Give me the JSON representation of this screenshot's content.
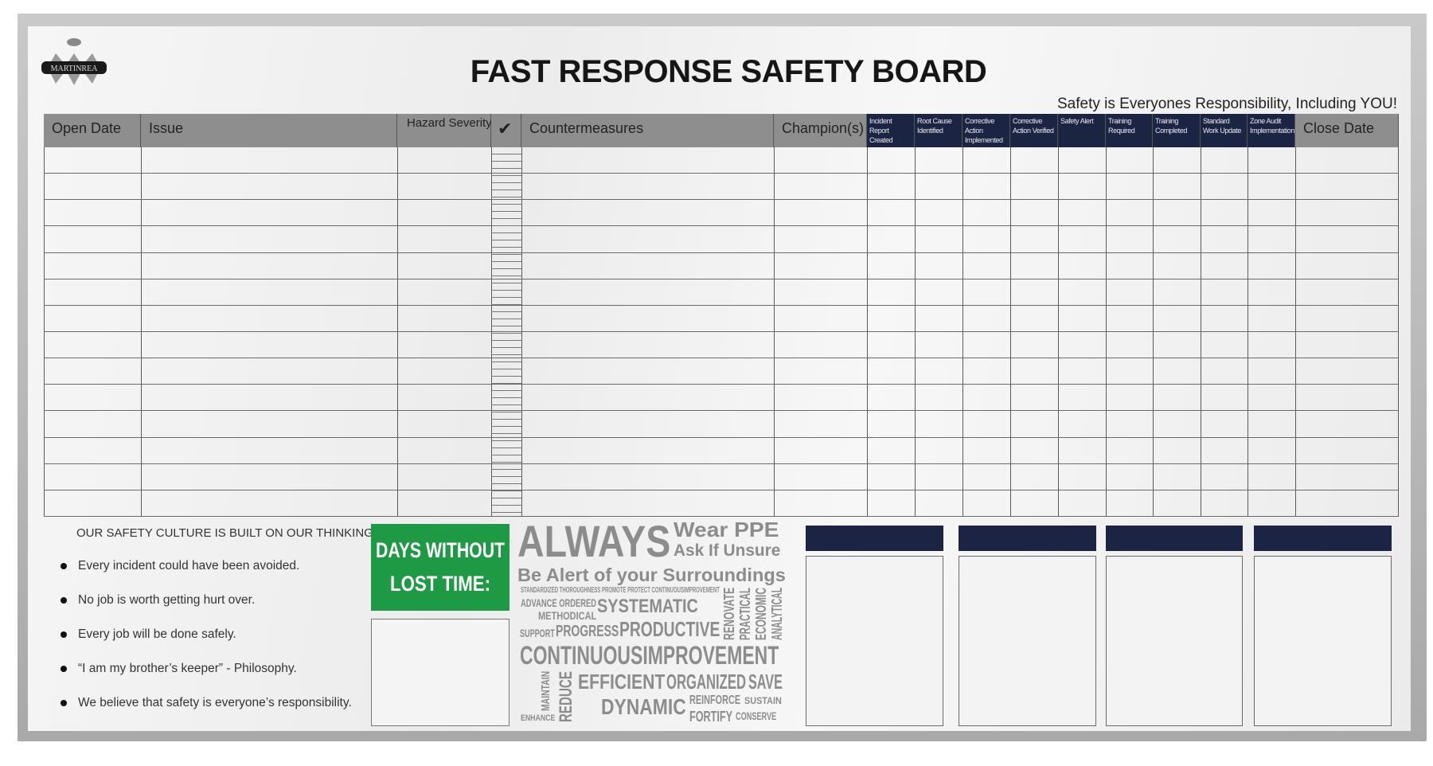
{
  "board": {
    "logo_text": "MARTINREA",
    "title": "FAST RESPONSE SAFETY BOARD",
    "subtitle": "Safety is Everyones Responsibility, Including YOU!"
  },
  "table": {
    "columns": [
      "Open Date",
      "Issue",
      "Hazard Severity",
      "✔",
      "Countermeasures",
      "Champion(s)",
      "Incident Report Created",
      "Root Cause Identified",
      "Corrective Action Implemented",
      "Corrective Action Verified",
      "Safety Alert",
      "Training Required",
      "Training Completed",
      "Standard Work Update",
      "Zone Audit Implementation",
      "Close Date"
    ],
    "header_colors": {
      "grey": "#8e8e8e",
      "navy": "#1c2444"
    }
  },
  "culture": {
    "heading": "OUR SAFETY CULTURE IS BUILT ON OUR THINKING:",
    "bullets": [
      "Every incident could have been avoided.",
      "No job is worth getting hurt over.",
      "Every job will be done safely.",
      "“I am my brother’s keeper” - Philosophy.",
      "We believe that safety is everyone’s responsibility."
    ]
  },
  "days": {
    "line1": "DAYS WITHOUT",
    "line2": "LOST TIME:",
    "color": "#1e9a45"
  },
  "cloud": {
    "always": "ALWAYS",
    "wear": "Wear PPE",
    "ask": "Ask If Unsure",
    "alert": "Be Alert of your Surroundings",
    "words": [
      "STANDARDIZED THOROUGHNESS PROMOTE PROTECT CONTINUOUSIMPROVEMENT",
      "ADVANCE ORDERED",
      "SYSTEMATIC",
      "METHODICAL",
      "SUPPORT",
      "PROGRESS",
      "PRODUCTIVE",
      "RENOVATE",
      "PRACTICAL",
      "ECONOMIC",
      "ANALYTICAL",
      "CONTINUOUSIMPROVEMENT",
      "REDUCE",
      "EFFICIENT",
      "ORGANIZED",
      "SAVE",
      "DYNAMIC",
      "REINFORCE",
      "SUSTAIN",
      "FORTIFY",
      "CONSERVE",
      "ENHANCE",
      "MAINTAIN"
    ]
  }
}
